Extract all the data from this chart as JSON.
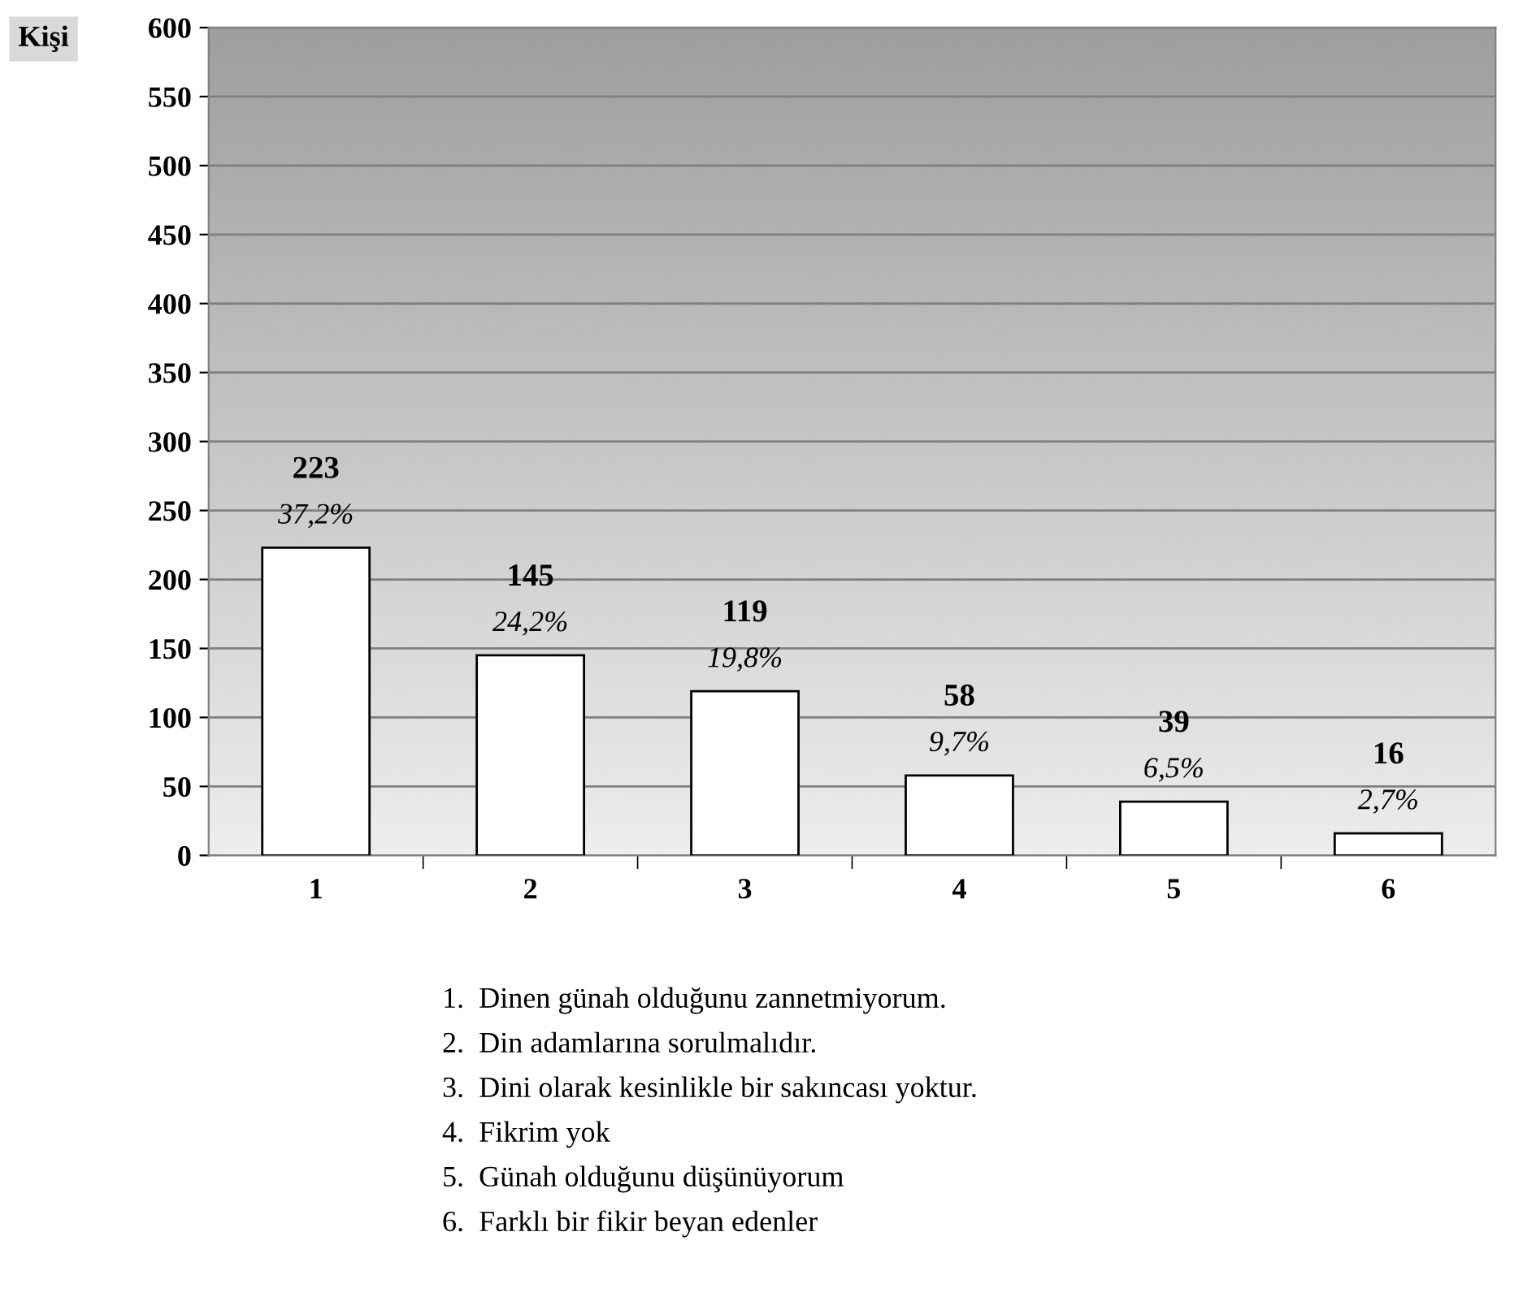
{
  "chart_data": {
    "type": "bar",
    "ylabel": "Kişi",
    "categories": [
      "1",
      "2",
      "3",
      "4",
      "5",
      "6"
    ],
    "values": [
      223,
      145,
      119,
      58,
      39,
      16
    ],
    "color": "#ffffff",
    "value_labels": [
      "223\n37,2%",
      "145\n24,2%",
      "119\n19,8%",
      "58\n9,7%",
      "39\n6,5%",
      "16\n2,7%"
    ],
    "ylim": [
      0,
      600
    ],
    "yticks": [
      0,
      50,
      100,
      150,
      200,
      250,
      300,
      350,
      400,
      450,
      500,
      550,
      600
    ],
    "grid": "y",
    "legend": false,
    "annotations": [
      "1.  Dinen günah olduğunu zannetmiyorum.",
      "2.  Din adamlarına sorulmalıdır.",
      "3.  Dini olarak kesinlikle bir sakıncası yoktur.",
      "4.  Fikrim yok",
      "5.  Günah olduğunu düşünüyorum",
      "6.  Farklı bir fikir beyan edenler"
    ]
  }
}
